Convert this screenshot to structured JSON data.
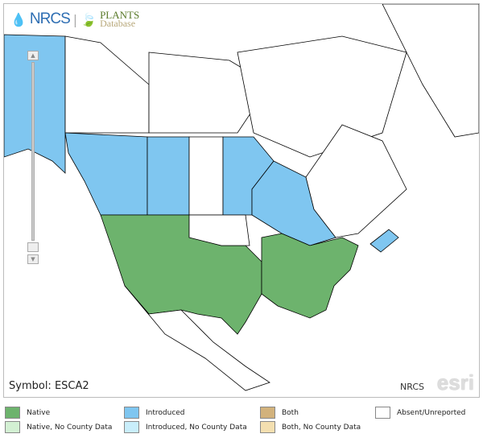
{
  "header": {
    "agency": "NRCS",
    "database_title": "PLANTS",
    "database_subtitle": "Database"
  },
  "map": {
    "symbol_label": "Symbol: ESCA2",
    "credit": "NRCS",
    "powered_by": "esri",
    "colors": {
      "native": "#6db36d",
      "introduced": "#7fc6f0",
      "water_bg": "#ffffff",
      "absent": "#ffffff"
    },
    "introduced_regions": [
      "Alaska",
      "British Columbia",
      "Alberta",
      "Manitoba",
      "Ontario",
      "Nova Scotia"
    ],
    "native_regions": [
      "Western and central United States",
      "Eastern United States"
    ]
  },
  "zoom": {
    "in_label": "▲",
    "out_label": "▼"
  },
  "legend": [
    {
      "label": "Native",
      "color": "#6db36d"
    },
    {
      "label": "Native, No County Data",
      "color": "#d3f0d3"
    },
    {
      "label": "Introduced",
      "color": "#7fc6f0"
    },
    {
      "label": "Introduced, No County Data",
      "color": "#c9eefb"
    },
    {
      "label": "Both",
      "color": "#d2b27c"
    },
    {
      "label": "Both, No County Data",
      "color": "#f3dfb0"
    },
    {
      "label": "Absent/Unreported",
      "color": "#ffffff"
    }
  ]
}
